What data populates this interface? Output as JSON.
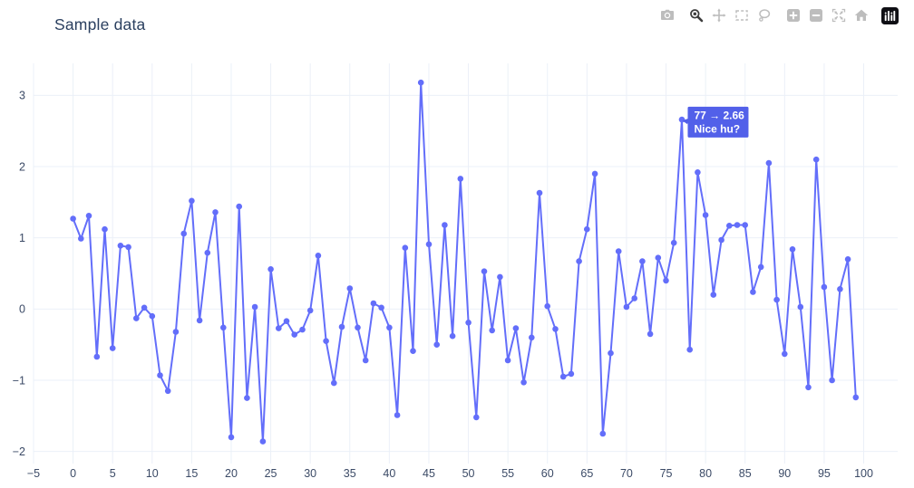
{
  "title": {
    "text": "Sample data",
    "color": "#2a3f5f"
  },
  "modebar": {
    "inactive_color": "#bdbdbd",
    "active_color": "#3d3d3d",
    "logo_bg": "#0f0f14",
    "logo_fg": "#ffffff",
    "buttons": [
      {
        "id": "camera",
        "label": "Download plot as png",
        "active": false,
        "group_start": false
      },
      {
        "id": "zoom",
        "label": "Zoom",
        "active": true,
        "group_start": true
      },
      {
        "id": "pan",
        "label": "Pan",
        "active": false,
        "group_start": false
      },
      {
        "id": "box-select",
        "label": "Box select",
        "active": false,
        "group_start": false
      },
      {
        "id": "lasso",
        "label": "Lasso select",
        "active": false,
        "group_start": false
      },
      {
        "id": "zoom-in",
        "label": "Zoom in",
        "active": false,
        "group_start": true
      },
      {
        "id": "zoom-out",
        "label": "Zoom out",
        "active": false,
        "group_start": false
      },
      {
        "id": "autoscale",
        "label": "Autoscale",
        "active": false,
        "group_start": false
      },
      {
        "id": "home",
        "label": "Reset axes",
        "active": false,
        "group_start": false
      },
      {
        "id": "plotly-logo",
        "label": "Produced with Plotly",
        "active": false,
        "group_start": true
      }
    ]
  },
  "chart_data": {
    "type": "line",
    "mode": "lines+markers",
    "title": "Sample data",
    "xlabel": "",
    "ylabel": "",
    "legend": "none",
    "grid": true,
    "line_color": "#636efa",
    "marker_color": "#636efa",
    "grid_color": "#ebf0f8",
    "tick_color": "#3b4a66",
    "xlim": [
      -5.0,
      104.3
    ],
    "ylim": [
      -2.17,
      3.45
    ],
    "x_ticks": {
      "values": [
        -5,
        0,
        5,
        10,
        15,
        20,
        25,
        30,
        35,
        40,
        45,
        50,
        55,
        60,
        65,
        70,
        75,
        80,
        85,
        90,
        95,
        100
      ],
      "labels": [
        "−5",
        "0",
        "5",
        "10",
        "15",
        "20",
        "25",
        "30",
        "35",
        "40",
        "45",
        "50",
        "55",
        "60",
        "65",
        "70",
        "75",
        "80",
        "85",
        "90",
        "95",
        "100"
      ]
    },
    "y_ticks": {
      "values": [
        -2,
        -1,
        0,
        1,
        2,
        3
      ],
      "labels": [
        "−2",
        "−1",
        "0",
        "1",
        "2",
        "3"
      ]
    },
    "x": [
      0,
      1,
      2,
      3,
      4,
      5,
      6,
      7,
      8,
      9,
      10,
      11,
      12,
      13,
      14,
      15,
      16,
      17,
      18,
      19,
      20,
      21,
      22,
      23,
      24,
      25,
      26,
      27,
      28,
      29,
      30,
      31,
      32,
      33,
      34,
      35,
      36,
      37,
      38,
      39,
      40,
      41,
      42,
      43,
      44,
      45,
      46,
      47,
      48,
      49,
      50,
      51,
      52,
      53,
      54,
      55,
      56,
      57,
      58,
      59,
      60,
      61,
      62,
      63,
      64,
      65,
      66,
      67,
      68,
      69,
      70,
      71,
      72,
      73,
      74,
      75,
      76,
      77,
      78,
      79,
      80,
      81,
      82,
      83,
      84,
      85,
      86,
      87,
      88,
      89,
      90,
      91,
      92,
      93,
      94,
      95,
      96,
      97,
      98,
      99
    ],
    "y": [
      1.27,
      0.99,
      1.31,
      -0.67,
      1.12,
      -0.55,
      0.89,
      0.87,
      -0.13,
      0.02,
      -0.1,
      -0.93,
      -1.15,
      -0.32,
      1.06,
      1.52,
      -0.16,
      0.79,
      1.36,
      -0.26,
      -1.8,
      1.44,
      -1.25,
      0.03,
      -1.86,
      0.56,
      -0.27,
      -0.17,
      -0.36,
      -0.29,
      -0.02,
      0.75,
      -0.45,
      -1.04,
      -0.25,
      0.29,
      -0.26,
      -0.72,
      0.08,
      0.02,
      -0.26,
      -1.49,
      0.86,
      -0.59,
      3.18,
      0.91,
      -0.5,
      1.18,
      -0.38,
      1.83,
      -0.19,
      -1.52,
      0.53,
      -0.3,
      0.45,
      -0.72,
      -0.27,
      -1.03,
      -0.4,
      1.63,
      0.04,
      -0.28,
      -0.95,
      -0.91,
      0.67,
      1.12,
      1.9,
      -1.75,
      -0.62,
      0.81,
      0.03,
      0.15,
      0.67,
      -0.35,
      0.72,
      0.4,
      0.93,
      2.66,
      -0.57,
      1.92,
      1.32,
      0.2,
      0.97,
      1.17,
      1.18,
      1.18,
      0.24,
      0.59,
      2.05,
      0.13,
      -0.63,
      0.84,
      0.03,
      -1.1,
      2.1,
      0.31,
      -1.0,
      0.28,
      0.7,
      -1.24
    ],
    "annotation": {
      "x": 77,
      "y": 2.66,
      "line1": "77 → 2.66",
      "line2": "Nice hu?",
      "bg_color": "#5260e9",
      "text_color": "#ffffff",
      "font_size": 12
    }
  }
}
